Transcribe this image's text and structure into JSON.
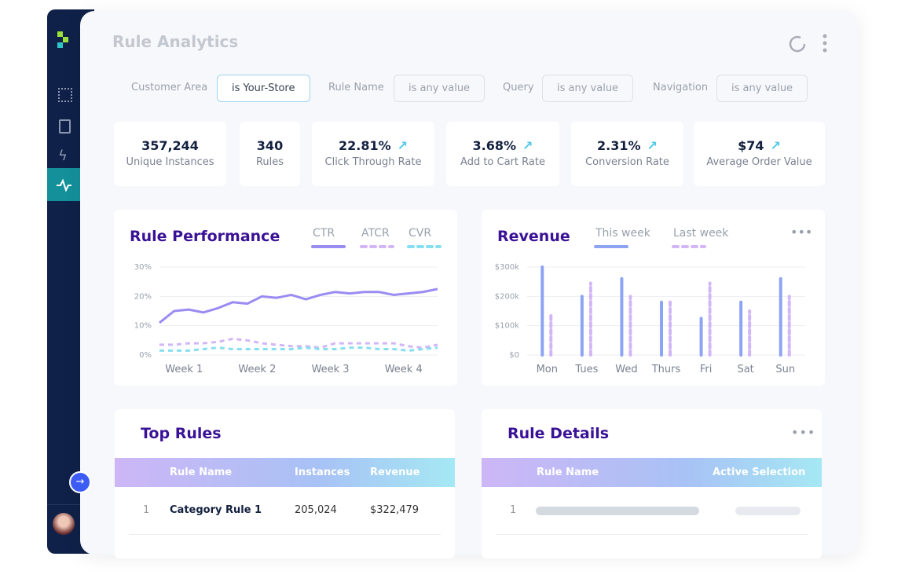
{
  "header": {
    "title": "Rule Analytics"
  },
  "filters": [
    {
      "label": "Customer Area",
      "value": "is Your-Store"
    },
    {
      "label": "Rule Name",
      "value": "is any value"
    },
    {
      "label": "Query",
      "value": "is any value"
    },
    {
      "label": "Navigation",
      "value": "is any value"
    }
  ],
  "kpis": [
    {
      "value": "357,244",
      "label": "Unique Instances"
    },
    {
      "value": "340",
      "label": "Rules"
    },
    {
      "value": "22.81%",
      "label": "Click Through Rate"
    },
    {
      "value": "3.68%",
      "label": "Add to Cart Rate"
    },
    {
      "value": "2.31%",
      "label": "Conversion Rate"
    },
    {
      "value": "$74",
      "label": "Average Order Value"
    }
  ],
  "rule_performance": {
    "type": "line",
    "title": "Rule Performance",
    "categories": [
      null,
      null,
      "Week 1",
      null,
      null,
      null,
      null,
      "Week 2",
      null,
      null,
      null,
      null,
      "Week 3",
      null,
      null,
      null,
      null,
      "Week 4",
      null,
      null
    ],
    "series": [
      {
        "name": "CTR",
        "color": "#9a8cf2",
        "dashed": false,
        "values": [
          11,
          15,
          15.5,
          14.5,
          16,
          18,
          17.5,
          20,
          19.5,
          20.5,
          19,
          20.5,
          21.5,
          21,
          21.5,
          21.5,
          20.5,
          21,
          21.5,
          22.5
        ]
      },
      {
        "name": "ATCR",
        "color": "#d2b6f6",
        "dashed": true,
        "values": [
          3.5,
          3.5,
          4,
          4,
          4.5,
          5.5,
          5,
          4,
          3.5,
          3,
          3,
          2.5,
          4,
          4,
          4,
          4,
          4,
          3,
          2.5,
          3.5
        ]
      },
      {
        "name": "CVR",
        "color": "#86dff0",
        "dashed": true,
        "values": [
          1.5,
          1.5,
          1.5,
          2,
          2.5,
          2,
          2,
          2,
          2,
          2,
          2.5,
          2,
          2,
          2.5,
          2.5,
          2,
          2,
          1.5,
          2,
          2.5
        ]
      }
    ],
    "ylim": [
      0,
      30
    ],
    "yticks": [
      {
        "value": 0,
        "label": "0%"
      },
      {
        "value": 10,
        "label": "10%"
      },
      {
        "value": 20,
        "label": "20%"
      },
      {
        "value": 30,
        "label": "30%"
      }
    ],
    "grid": true
  },
  "revenue": {
    "type": "bar",
    "title": "Revenue",
    "categories": [
      "Mon",
      "Tues",
      "Wed",
      "Thurs",
      "Fri",
      "Sat",
      "Sun"
    ],
    "series": [
      {
        "name": "This week",
        "color": "#8da4f3",
        "dashed": false,
        "values": [
          300000,
          200000,
          260000,
          180000,
          125000,
          180000,
          260000
        ]
      },
      {
        "name": "Last week",
        "color": "#d2b6f6",
        "dashed": true,
        "values": [
          140000,
          245000,
          200000,
          180000,
          245000,
          150000,
          200000
        ]
      }
    ],
    "ylim": [
      0,
      300000
    ],
    "yticks": [
      {
        "value": 0,
        "label": "$0"
      },
      {
        "value": 100000,
        "label": "$100k"
      },
      {
        "value": 200000,
        "label": "$200k"
      },
      {
        "value": 300000,
        "label": "$300k"
      }
    ],
    "grid": true
  },
  "top_rules": {
    "title": "Top Rules",
    "columns": [
      "Rule Name",
      "Instances",
      "Revenue"
    ],
    "rows": [
      [
        "1",
        "Category Rule 1",
        "205,024",
        "$322,479"
      ]
    ]
  },
  "rule_details": {
    "title": "Rule Details",
    "columns": [
      "Rule Name",
      "Active Selection"
    ],
    "rows": [
      [
        "1"
      ]
    ]
  }
}
